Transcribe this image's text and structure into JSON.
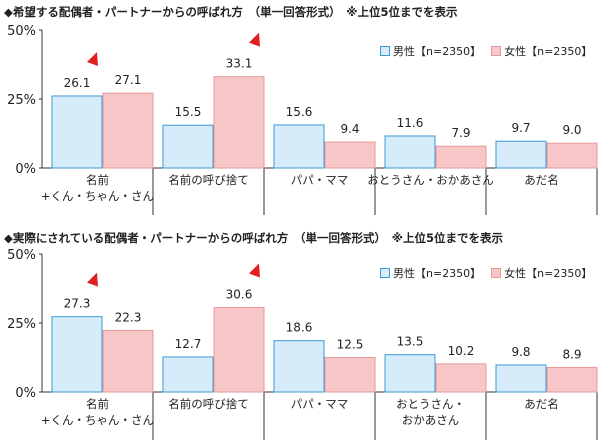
{
  "chart_data": [
    {
      "type": "bar",
      "title": "◆希望する配偶者・パートナーからの呼ばれ方　（単一回答形式）　※上位5位までを表示",
      "categories": [
        "名前\n+くん・ちゃん・さん",
        "名前の呼び捨て",
        "パパ・ママ",
        "おとうさん・おかあさん",
        "あだ名"
      ],
      "series": [
        {
          "name": "男性【n=2350】",
          "values": [
            26.1,
            15.5,
            15.6,
            11.6,
            9.7
          ]
        },
        {
          "name": "女性【n=2350】",
          "values": [
            27.1,
            33.1,
            9.4,
            7.9,
            9.0
          ]
        }
      ],
      "ylim": [
        0,
        50
      ],
      "yticks": [
        "0%",
        "25%",
        "50%"
      ],
      "markers": [
        {
          "category": 0,
          "series": 0
        },
        {
          "category": 1,
          "series": 1
        }
      ]
    },
    {
      "type": "bar",
      "title": "◆実際にされている配偶者・パートナーからの呼ばれ方　（単一回答形式）　※上位5位までを表示",
      "categories": [
        "名前\n+くん・ちゃん・さん",
        "名前の呼び捨て",
        "パパ・ママ",
        "おとうさん・\nおかあさん",
        "あだ名"
      ],
      "series": [
        {
          "name": "男性【n=2350】",
          "values": [
            27.3,
            12.7,
            18.6,
            13.5,
            9.8
          ]
        },
        {
          "name": "女性【n=2350】",
          "values": [
            22.3,
            30.6,
            12.5,
            10.2,
            8.9
          ]
        }
      ],
      "ylim": [
        0,
        50
      ],
      "yticks": [
        "0%",
        "25%",
        "50%"
      ],
      "markers": [
        {
          "category": 0,
          "series": 0
        },
        {
          "category": 1,
          "series": 1
        }
      ]
    }
  ],
  "colors": {
    "male_fill": "#d6ecfa",
    "male_stroke": "#3a9bd5",
    "female_fill": "#f7c6c6",
    "female_stroke": "#e59a9a",
    "marker": "#e02020"
  }
}
